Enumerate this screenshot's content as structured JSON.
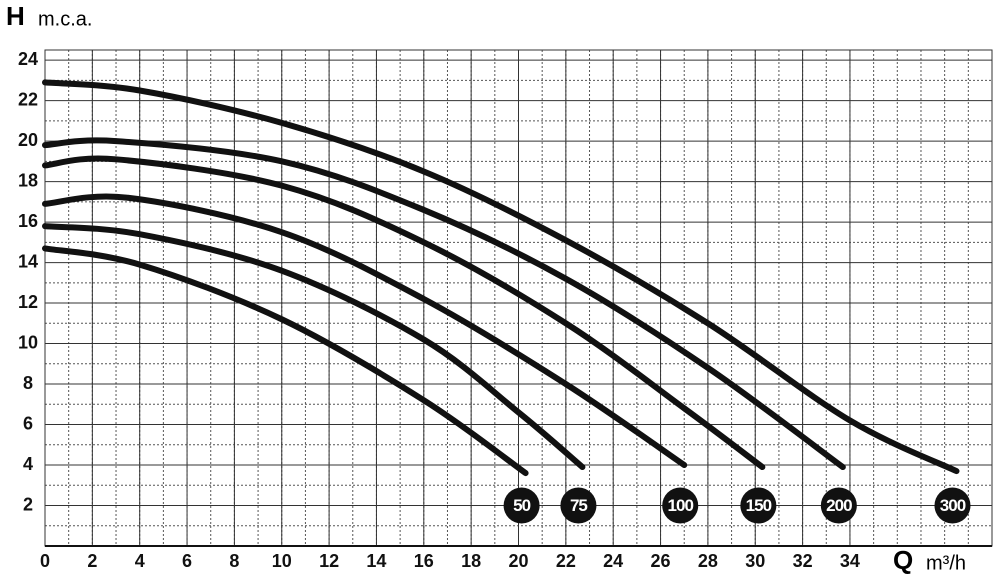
{
  "chart_data": {
    "type": "line",
    "y_label": {
      "symbol": "H",
      "unit": "m.c.a."
    },
    "x_label": {
      "symbol": "Q",
      "unit": "m³/h"
    },
    "xlim": [
      0,
      40
    ],
    "ylim": [
      0,
      24.5
    ],
    "xticks": [
      0,
      2,
      4,
      6,
      8,
      10,
      12,
      14,
      16,
      18,
      20,
      22,
      24,
      26,
      28,
      30,
      32,
      34
    ],
    "yticks": [
      2,
      4,
      6,
      8,
      10,
      12,
      14,
      16,
      18,
      20,
      22,
      24
    ],
    "grid": true,
    "color": "#111111",
    "series": [
      {
        "name": "50",
        "x": [
          0,
          4,
          10,
          16,
          20.3
        ],
        "values": [
          14.7,
          13.9,
          11.2,
          7.2,
          3.6
        ]
      },
      {
        "name": "75",
        "x": [
          0,
          4,
          10,
          16,
          20,
          22.7
        ],
        "values": [
          15.8,
          15.4,
          13.6,
          10.2,
          6.6,
          3.9
        ]
      },
      {
        "name": "100",
        "x": [
          0,
          3.5,
          10,
          16,
          22,
          27
        ],
        "values": [
          16.9,
          17.2,
          15.5,
          12.2,
          8.0,
          4.0
        ]
      },
      {
        "name": "150",
        "x": [
          0,
          3,
          10,
          16,
          22,
          27,
          30.3
        ],
        "values": [
          18.8,
          19.1,
          17.8,
          15.0,
          11.0,
          6.8,
          3.9
        ]
      },
      {
        "name": "200",
        "x": [
          0,
          3,
          10,
          16,
          22,
          28,
          33.7
        ],
        "values": [
          19.8,
          20.0,
          19.0,
          16.6,
          13.2,
          8.8,
          3.9
        ]
      },
      {
        "name": "300",
        "x": [
          0,
          4,
          10,
          16,
          22,
          28,
          34,
          38.5
        ],
        "values": [
          22.9,
          22.5,
          20.9,
          18.5,
          15.1,
          11.0,
          6.2,
          3.7
        ]
      }
    ]
  }
}
